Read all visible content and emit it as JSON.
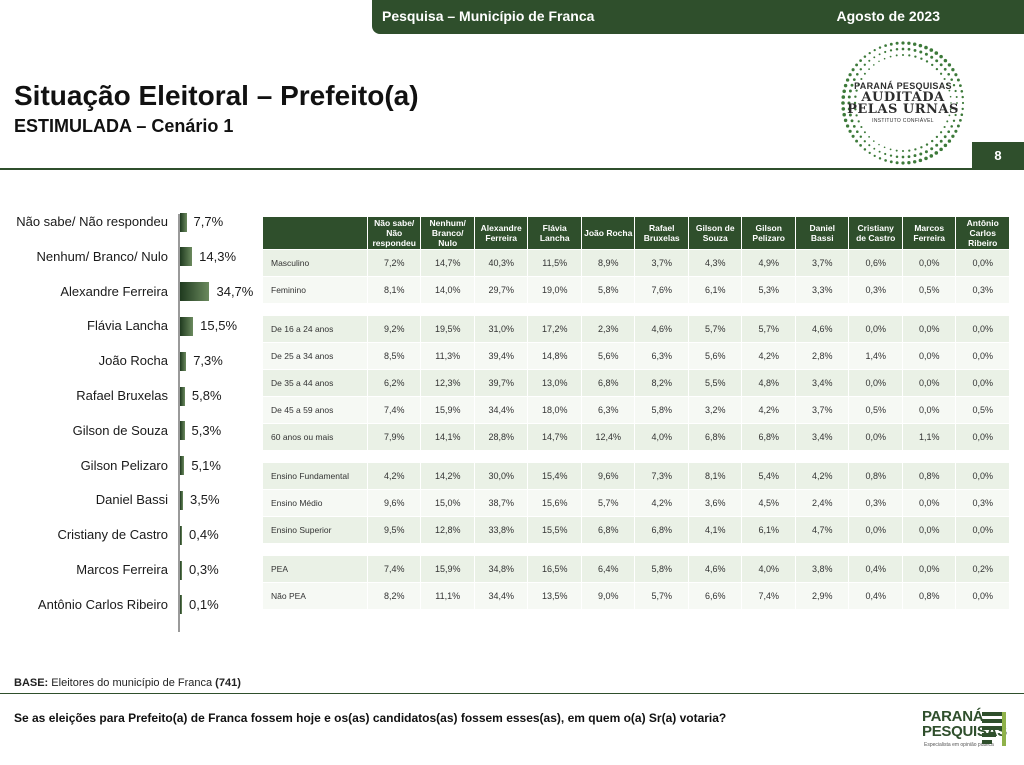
{
  "header": {
    "survey": "Pesquisa – Município de Franca",
    "date": "Agosto de 2023"
  },
  "title": "Situação Eleitoral – Prefeito(a)",
  "subtitle": "ESTIMULADA – Cenário 1",
  "seal": {
    "line1": "PARANÁ PESQUISAS",
    "line2": "AUDITADA",
    "line3": "PELAS URNAS",
    "line4": "INSTITUTO CONFIÁVEL"
  },
  "page_number": "8",
  "chart_data": {
    "type": "bar",
    "orientation": "horizontal",
    "categories": [
      "Não sabe/ Não respondeu",
      "Nenhum/ Branco/ Nulo",
      "Alexandre Ferreira",
      "Flávia Lancha",
      "João Rocha",
      "Rafael Bruxelas",
      "Gilson de Souza",
      "Gilson Pelizaro",
      "Daniel Bassi",
      "Cristiany de Castro",
      "Marcos Ferreira",
      "Antônio Carlos Ribeiro"
    ],
    "values": [
      7.7,
      14.3,
      34.7,
      15.5,
      7.3,
      5.8,
      5.3,
      5.1,
      3.5,
      0.4,
      0.3,
      0.1
    ],
    "value_labels": [
      "7,7%",
      "14,3%",
      "34,7%",
      "15,5%",
      "7,3%",
      "5,8%",
      "5,3%",
      "5,1%",
      "3,5%",
      "0,4%",
      "0,3%",
      "0,1%"
    ],
    "colors": {
      "bar_dark": "#1f3a1f",
      "bar_light": "#6b8a5e"
    }
  },
  "table": {
    "columns": [
      "Não sabe/ Não respondeu",
      "Nenhum/ Branco/ Nulo",
      "Alexandre Ferreira",
      "Flávia Lancha",
      "João Rocha",
      "Rafael Bruxelas",
      "Gilson de Souza",
      "Gilson Pelizaro",
      "Daniel Bassi",
      "Cristiany de Castro",
      "Marcos Ferreira",
      "Antônio Carlos Ribeiro"
    ],
    "groups": [
      {
        "rows": [
          {
            "label": "Masculino",
            "values": [
              "7,2%",
              "14,7%",
              "40,3%",
              "11,5%",
              "8,9%",
              "3,7%",
              "4,3%",
              "4,9%",
              "3,7%",
              "0,6%",
              "0,0%",
              "0,0%"
            ]
          },
          {
            "label": "Feminino",
            "values": [
              "8,1%",
              "14,0%",
              "29,7%",
              "19,0%",
              "5,8%",
              "7,6%",
              "6,1%",
              "5,3%",
              "3,3%",
              "0,3%",
              "0,5%",
              "0,3%"
            ]
          }
        ]
      },
      {
        "rows": [
          {
            "label": "De 16 a 24 anos",
            "values": [
              "9,2%",
              "19,5%",
              "31,0%",
              "17,2%",
              "2,3%",
              "4,6%",
              "5,7%",
              "5,7%",
              "4,6%",
              "0,0%",
              "0,0%",
              "0,0%"
            ]
          },
          {
            "label": "De 25 a 34 anos",
            "values": [
              "8,5%",
              "11,3%",
              "39,4%",
              "14,8%",
              "5,6%",
              "6,3%",
              "5,6%",
              "4,2%",
              "2,8%",
              "1,4%",
              "0,0%",
              "0,0%"
            ]
          },
          {
            "label": "De 35 a 44 anos",
            "values": [
              "6,2%",
              "12,3%",
              "39,7%",
              "13,0%",
              "6,8%",
              "8,2%",
              "5,5%",
              "4,8%",
              "3,4%",
              "0,0%",
              "0,0%",
              "0,0%"
            ]
          },
          {
            "label": "De 45 a 59 anos",
            "values": [
              "7,4%",
              "15,9%",
              "34,4%",
              "18,0%",
              "6,3%",
              "5,8%",
              "3,2%",
              "4,2%",
              "3,7%",
              "0,5%",
              "0,0%",
              "0,5%"
            ]
          },
          {
            "label": "60 anos ou mais",
            "values": [
              "7,9%",
              "14,1%",
              "28,8%",
              "14,7%",
              "12,4%",
              "4,0%",
              "6,8%",
              "6,8%",
              "3,4%",
              "0,0%",
              "1,1%",
              "0,0%"
            ]
          }
        ]
      },
      {
        "rows": [
          {
            "label": "Ensino Fundamental",
            "values": [
              "4,2%",
              "14,2%",
              "30,0%",
              "15,4%",
              "9,6%",
              "7,3%",
              "8,1%",
              "5,4%",
              "4,2%",
              "0,8%",
              "0,8%",
              "0,0%"
            ]
          },
          {
            "label": "Ensino Médio",
            "values": [
              "9,6%",
              "15,0%",
              "38,7%",
              "15,6%",
              "5,7%",
              "4,2%",
              "3,6%",
              "4,5%",
              "2,4%",
              "0,3%",
              "0,0%",
              "0,3%"
            ]
          },
          {
            "label": "Ensino Superior",
            "values": [
              "9,5%",
              "12,8%",
              "33,8%",
              "15,5%",
              "6,8%",
              "6,8%",
              "4,1%",
              "6,1%",
              "4,7%",
              "0,0%",
              "0,0%",
              "0,0%"
            ]
          }
        ]
      },
      {
        "rows": [
          {
            "label": "PEA",
            "values": [
              "7,4%",
              "15,9%",
              "34,8%",
              "16,5%",
              "6,4%",
              "5,8%",
              "4,6%",
              "4,0%",
              "3,8%",
              "0,4%",
              "0,0%",
              "0,2%"
            ]
          },
          {
            "label": "Não PEA",
            "values": [
              "8,2%",
              "11,1%",
              "34,4%",
              "13,5%",
              "9,0%",
              "5,7%",
              "6,6%",
              "7,4%",
              "2,9%",
              "0,4%",
              "0,8%",
              "0,0%"
            ]
          }
        ]
      }
    ]
  },
  "base": {
    "label": "BASE:",
    "text": "Eleitores do município de Franca",
    "count": "(741)"
  },
  "question": "Se as eleições para Prefeito(a) de Franca fossem hoje e os(as) candidatos(as) fossem esses(as), em quem o(a) Sr(a) votaria?",
  "logo": {
    "line1": "PARANÁ",
    "line2": "PESQUISAS",
    "tagline": "Especialista em opinião pública"
  },
  "colors": {
    "brand_green": "#2f4f2c",
    "row_bg": "#eaf1e6"
  }
}
